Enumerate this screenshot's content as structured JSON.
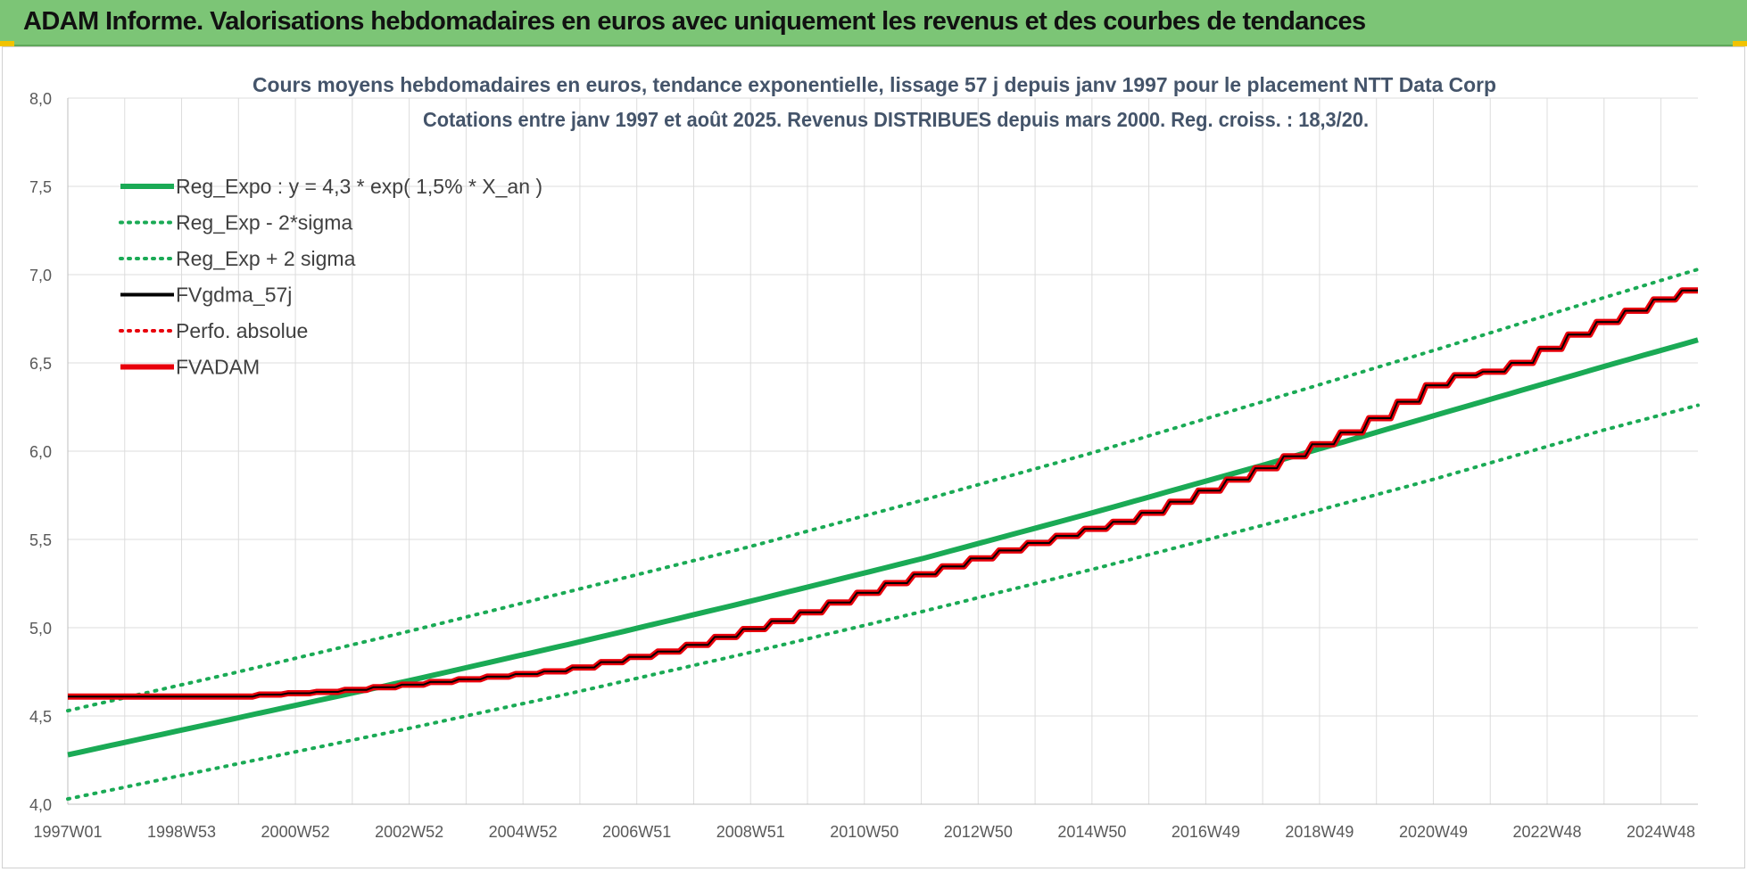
{
  "banner": {
    "title": "ADAM Informe. Valorisations hebdomadaires en euros avec uniquement les revenus et des courbes de tendances"
  },
  "colors": {
    "banner_bg": "#7cc576",
    "regression": "#1aaa55",
    "fvgdma": "#000000",
    "fvadam": "#e8000b",
    "grid": "#dcdcdc"
  },
  "chart_data": {
    "type": "line",
    "title": "Cours moyens hebdomadaires en euros, tendance exponentielle, lissage 57 j depuis janv 1997 pour le placement NTT Data Corp",
    "subtitle": "Cotations entre janv 1997 et août 2025. Revenus DISTRIBUES depuis mars 2000. Reg. croiss. : 18,3/20.",
    "ylim": [
      4.0,
      8.0
    ],
    "y_ticks": [
      "4,0",
      "4,5",
      "5,0",
      "5,5",
      "6,0",
      "6,5",
      "7,0",
      "7,5",
      "8,0"
    ],
    "x_range": [
      1997.0,
      2025.65
    ],
    "x_ticks": [
      "1997W01",
      "1998W53",
      "2000W52",
      "2002W52",
      "2004W52",
      "2006W51",
      "2008W51",
      "2010W50",
      "2012W50",
      "2014W50",
      "2016W49",
      "2018W49",
      "2020W49",
      "2022W48",
      "2024W48"
    ],
    "x_tick_years": [
      1997.0,
      1999.0,
      2001.0,
      2003.0,
      2005.0,
      2007.0,
      2009.0,
      2011.0,
      2013.0,
      2015.0,
      2017.0,
      2019.0,
      2021.0,
      2023.0,
      2025.0
    ],
    "grid": true,
    "legend_position": "top-left",
    "legend": [
      {
        "label": "Reg_Expo : y = 4,3 * exp( 1,5% *  X_an )",
        "style": "solid",
        "color": "#1aaa55"
      },
      {
        "label": "Reg_Exp - 2*sigma",
        "style": "dotted",
        "color": "#1aaa55"
      },
      {
        "label": "Reg_Exp + 2 sigma",
        "style": "dotted",
        "color": "#1aaa55"
      },
      {
        "label": "FVgdma_57j",
        "style": "solid",
        "color": "#000000"
      },
      {
        "label": "Perfo. absolue",
        "style": "dotted",
        "color": "#e8000b"
      },
      {
        "label": "FVADAM",
        "style": "solid",
        "color": "#e8000b"
      }
    ],
    "series": [
      {
        "name": "Reg_Expo : y = 4,3 * exp( 1,5% *  X_an )",
        "x": [
          1997.0,
          2000.0,
          2003.0,
          2006.0,
          2009.0,
          2012.0,
          2015.0,
          2018.0,
          2021.0,
          2024.0,
          2025.65
        ],
        "values": [
          4.28,
          4.49,
          4.7,
          4.92,
          5.15,
          5.39,
          5.65,
          5.92,
          6.2,
          6.48,
          6.63
        ]
      },
      {
        "name": "Reg_Exp - 2*sigma",
        "x": [
          1997.0,
          2000.0,
          2003.0,
          2006.0,
          2009.0,
          2012.0,
          2015.0,
          2018.0,
          2021.0,
          2024.0,
          2025.65
        ],
        "values": [
          4.03,
          4.23,
          4.43,
          4.64,
          4.86,
          5.09,
          5.33,
          5.58,
          5.84,
          6.12,
          6.26
        ]
      },
      {
        "name": "Reg_Exp + 2 sigma",
        "x": [
          1997.0,
          2000.0,
          2003.0,
          2006.0,
          2009.0,
          2012.0,
          2015.0,
          2018.0,
          2021.0,
          2024.0,
          2025.65
        ],
        "values": [
          4.53,
          4.75,
          4.98,
          5.22,
          5.46,
          5.72,
          5.99,
          6.28,
          6.57,
          6.87,
          7.03
        ]
      },
      {
        "name": "FVgdma_57j",
        "x": [
          1997.0,
          2000.0,
          2002.0,
          2004.0,
          2006.0,
          2008.0,
          2010.0,
          2012.0,
          2014.0,
          2016.0,
          2018.0,
          2020.0,
          2021.5,
          2022.5,
          2024.0,
          2025.65
        ],
        "values": [
          4.61,
          4.61,
          4.64,
          4.7,
          4.76,
          4.88,
          5.06,
          5.28,
          5.46,
          5.62,
          5.87,
          6.14,
          6.42,
          6.46,
          6.7,
          6.91
        ]
      },
      {
        "name": "FVADAM",
        "x": [
          1997.0,
          2000.0,
          2002.0,
          2004.0,
          2006.0,
          2008.0,
          2010.0,
          2012.0,
          2014.0,
          2016.0,
          2018.0,
          2020.0,
          2021.5,
          2022.5,
          2024.0,
          2025.65
        ],
        "values": [
          4.61,
          4.61,
          4.64,
          4.7,
          4.76,
          4.88,
          5.06,
          5.28,
          5.46,
          5.62,
          5.87,
          6.14,
          6.42,
          6.46,
          6.7,
          6.91
        ]
      }
    ]
  }
}
